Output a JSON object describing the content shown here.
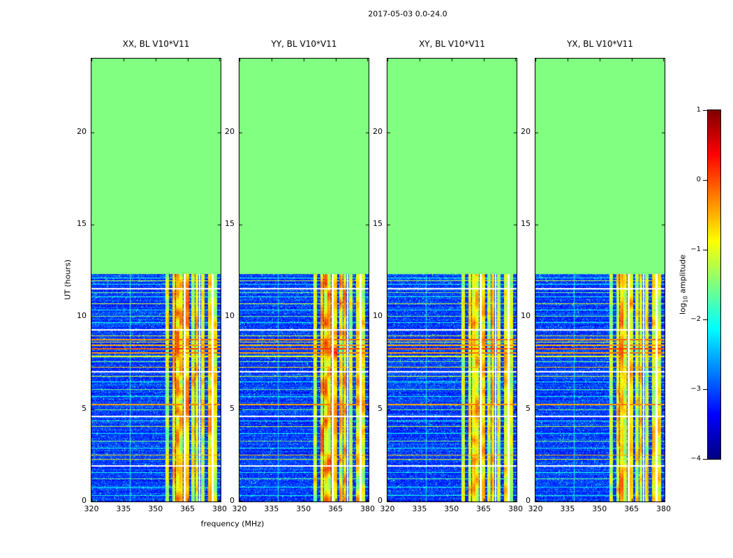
{
  "chart_data": {
    "type": "heatmap",
    "title": "2017-05-03 0.0-24.0",
    "xlabel": "frequency (MHz)",
    "ylabel": "UT (hours)",
    "x_range_mhz": [
      320,
      380.5
    ],
    "x_ticks": [
      320,
      335,
      350,
      365,
      380
    ],
    "y_range_hours": [
      0,
      24
    ],
    "y_ticks": [
      0,
      5,
      10,
      15,
      20
    ],
    "colormap": "jet",
    "colorbar": {
      "label_prefix": "log",
      "label_sub": "10",
      "label_suffix": " amplitude",
      "vmin": -4,
      "vmax": 1,
      "ticks": [
        1,
        0,
        -1,
        -2,
        -3,
        -4
      ]
    },
    "panels": [
      {
        "title": "XX, BL V10*V11",
        "rfi_strength": 0.95
      },
      {
        "title": "YY, BL V10*V11",
        "rfi_strength": 1.1
      },
      {
        "title": "XY, BL V10*V11",
        "rfi_strength": 0.85
      },
      {
        "title": "YX, BL V10*V11",
        "rfi_strength": 0.9
      }
    ],
    "no_data": {
      "above_hours": 12.3,
      "value": -1.5
    },
    "noise": {
      "mean": -3.1,
      "spread": 0.35,
      "speckle_prob": 0.05,
      "speckle_boost": 1.1
    },
    "rfi_freq_bands_mhz": [
      [
        338.0,
        338.45,
        -2.1,
        0.25
      ],
      [
        354.8,
        356.3,
        -1.15,
        0.7
      ],
      [
        357.9,
        359.3,
        -0.75,
        0.8
      ],
      [
        359.6,
        361.1,
        -0.5,
        0.8
      ],
      [
        361.3,
        362.7,
        -0.8,
        0.8
      ],
      [
        363.1,
        364.1,
        null,
        0
      ],
      [
        364.3,
        365.9,
        -0.65,
        0.8
      ],
      [
        366.9,
        368.5,
        -0.95,
        0.8
      ],
      [
        368.8,
        370.15,
        -0.7,
        0.8
      ],
      [
        370.35,
        371.15,
        null,
        0
      ],
      [
        371.35,
        372.9,
        -1.05,
        0.7
      ],
      [
        374.5,
        376.1,
        -0.85,
        0.8
      ],
      [
        376.3,
        377.1,
        null,
        0
      ],
      [
        377.3,
        378.9,
        -0.95,
        0.8
      ]
    ],
    "rfi_time_lines_hours": [
      [
        0.35,
        -2.0,
        1
      ],
      [
        0.8,
        -2.1,
        1
      ],
      [
        1.25,
        -1.6,
        1
      ],
      [
        1.6,
        -2.0,
        1
      ],
      [
        1.95,
        null,
        2
      ],
      [
        2.3,
        -1.0,
        1
      ],
      [
        2.55,
        -0.6,
        1
      ],
      [
        2.9,
        -2.0,
        1
      ],
      [
        3.3,
        -1.5,
        1
      ],
      [
        3.7,
        -2.1,
        1
      ],
      [
        4.1,
        -1.1,
        1
      ],
      [
        4.4,
        -2.0,
        1
      ],
      [
        4.65,
        null,
        2
      ],
      [
        5.0,
        -1.5,
        1
      ],
      [
        5.3,
        -0.45,
        2
      ],
      [
        5.7,
        -2.0,
        1
      ],
      [
        6.1,
        -1.6,
        1
      ],
      [
        6.5,
        -2.1,
        1
      ],
      [
        6.8,
        -1.05,
        1
      ],
      [
        7.05,
        null,
        2
      ],
      [
        7.3,
        -0.7,
        1
      ],
      [
        7.6,
        -1.5,
        1
      ],
      [
        7.9,
        -1.0,
        2
      ],
      [
        8.1,
        -0.4,
        2
      ],
      [
        8.3,
        -0.12,
        2
      ],
      [
        8.5,
        -0.5,
        2
      ],
      [
        8.65,
        -0.9,
        1
      ],
      [
        8.8,
        -0.35,
        2
      ],
      [
        9.0,
        -1.0,
        1
      ],
      [
        9.35,
        null,
        2
      ],
      [
        9.7,
        -2.0,
        1
      ],
      [
        10.05,
        -1.55,
        1
      ],
      [
        10.4,
        -2.1,
        1
      ],
      [
        10.75,
        -1.05,
        1
      ],
      [
        11.1,
        -2.0,
        1
      ],
      [
        11.35,
        -1.5,
        1
      ],
      [
        11.55,
        null,
        2
      ],
      [
        11.8,
        -2.05,
        1
      ],
      [
        12.0,
        -1.1,
        1
      ],
      [
        12.15,
        -2.0,
        1
      ]
    ]
  }
}
